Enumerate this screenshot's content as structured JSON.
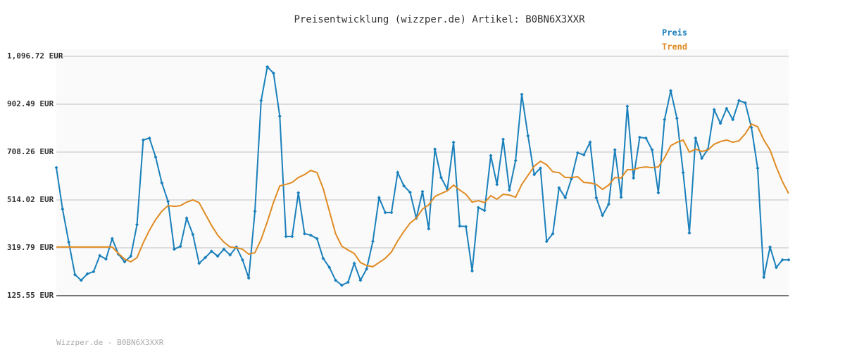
{
  "chart_data": {
    "type": "line",
    "title": "Preisentwicklung (wizzper.de) Artikel: B0BN6X3XXR",
    "footer": "Wizzper.de - B0BN6X3XXR",
    "ylim": [
      125.55,
      1096.72
    ],
    "yticks": [
      {
        "value": 125.55,
        "label": "125.55 EUR"
      },
      {
        "value": 319.79,
        "label": "319.79 EUR"
      },
      {
        "value": 514.02,
        "label": "514.02 EUR"
      },
      {
        "value": 708.26,
        "label": "708.26 EUR"
      },
      {
        "value": 902.49,
        "label": "902.49 EUR"
      },
      {
        "value": 1096.72,
        "label": "1,096.72 EUR"
      }
    ],
    "grid": true,
    "legend": "top-right",
    "series": [
      {
        "name": "Preis",
        "color": "#1a80bb",
        "markers": true,
        "values": [
          645,
          477,
          343,
          211,
          188,
          214,
          223,
          288,
          274,
          357,
          294,
          263,
          286,
          414,
          757,
          765,
          688,
          583,
          508,
          314,
          326,
          440,
          374,
          257,
          280,
          306,
          286,
          314,
          291,
          323,
          271,
          197,
          468,
          917,
          1054,
          1028,
          854,
          366,
          366,
          543,
          377,
          371,
          357,
          277,
          240,
          188,
          168,
          180,
          257,
          188,
          234,
          346,
          523,
          463,
          463,
          625,
          571,
          545,
          440,
          548,
          397,
          720,
          605,
          557,
          748,
          408,
          406,
          226,
          483,
          471,
          694,
          577,
          760,
          554,
          674,
          942,
          774,
          617,
          643,
          346,
          377,
          563,
          523,
          600,
          705,
          697,
          748,
          523,
          451,
          497,
          717,
          525,
          894,
          603,
          768,
          765,
          717,
          543,
          840,
          957,
          845,
          625,
          380,
          765,
          683,
          720,
          880,
          825,
          885,
          840,
          917,
          908,
          808,
          643,
          200,
          323,
          240,
          271,
          271
        ]
      },
      {
        "name": "Trend",
        "color": "#e08b22",
        "markers": false,
        "values": [
          323,
          323,
          323,
          323,
          323,
          323,
          323,
          323,
          323,
          323,
          297,
          274,
          263,
          280,
          340,
          391,
          434,
          468,
          491,
          488,
          491,
          505,
          514,
          503,
          457,
          411,
          371,
          343,
          323,
          320,
          314,
          294,
          300,
          354,
          426,
          505,
          571,
          577,
          585,
          605,
          617,
          634,
          625,
          560,
          468,
          377,
          326,
          311,
          297,
          260,
          248,
          243,
          260,
          277,
          303,
          348,
          386,
          420,
          440,
          477,
          494,
          528,
          540,
          551,
          574,
          554,
          537,
          505,
          511,
          503,
          531,
          517,
          537,
          534,
          525,
          577,
          614,
          651,
          671,
          657,
          628,
          625,
          605,
          605,
          608,
          585,
          583,
          577,
          557,
          574,
          605,
          603,
          637,
          637,
          645,
          648,
          645,
          648,
          685,
          734,
          748,
          757,
          708,
          720,
          711,
          717,
          740,
          751,
          757,
          748,
          754,
          782,
          822,
          811,
          757,
          717,
          648,
          588,
          540
        ]
      }
    ]
  }
}
